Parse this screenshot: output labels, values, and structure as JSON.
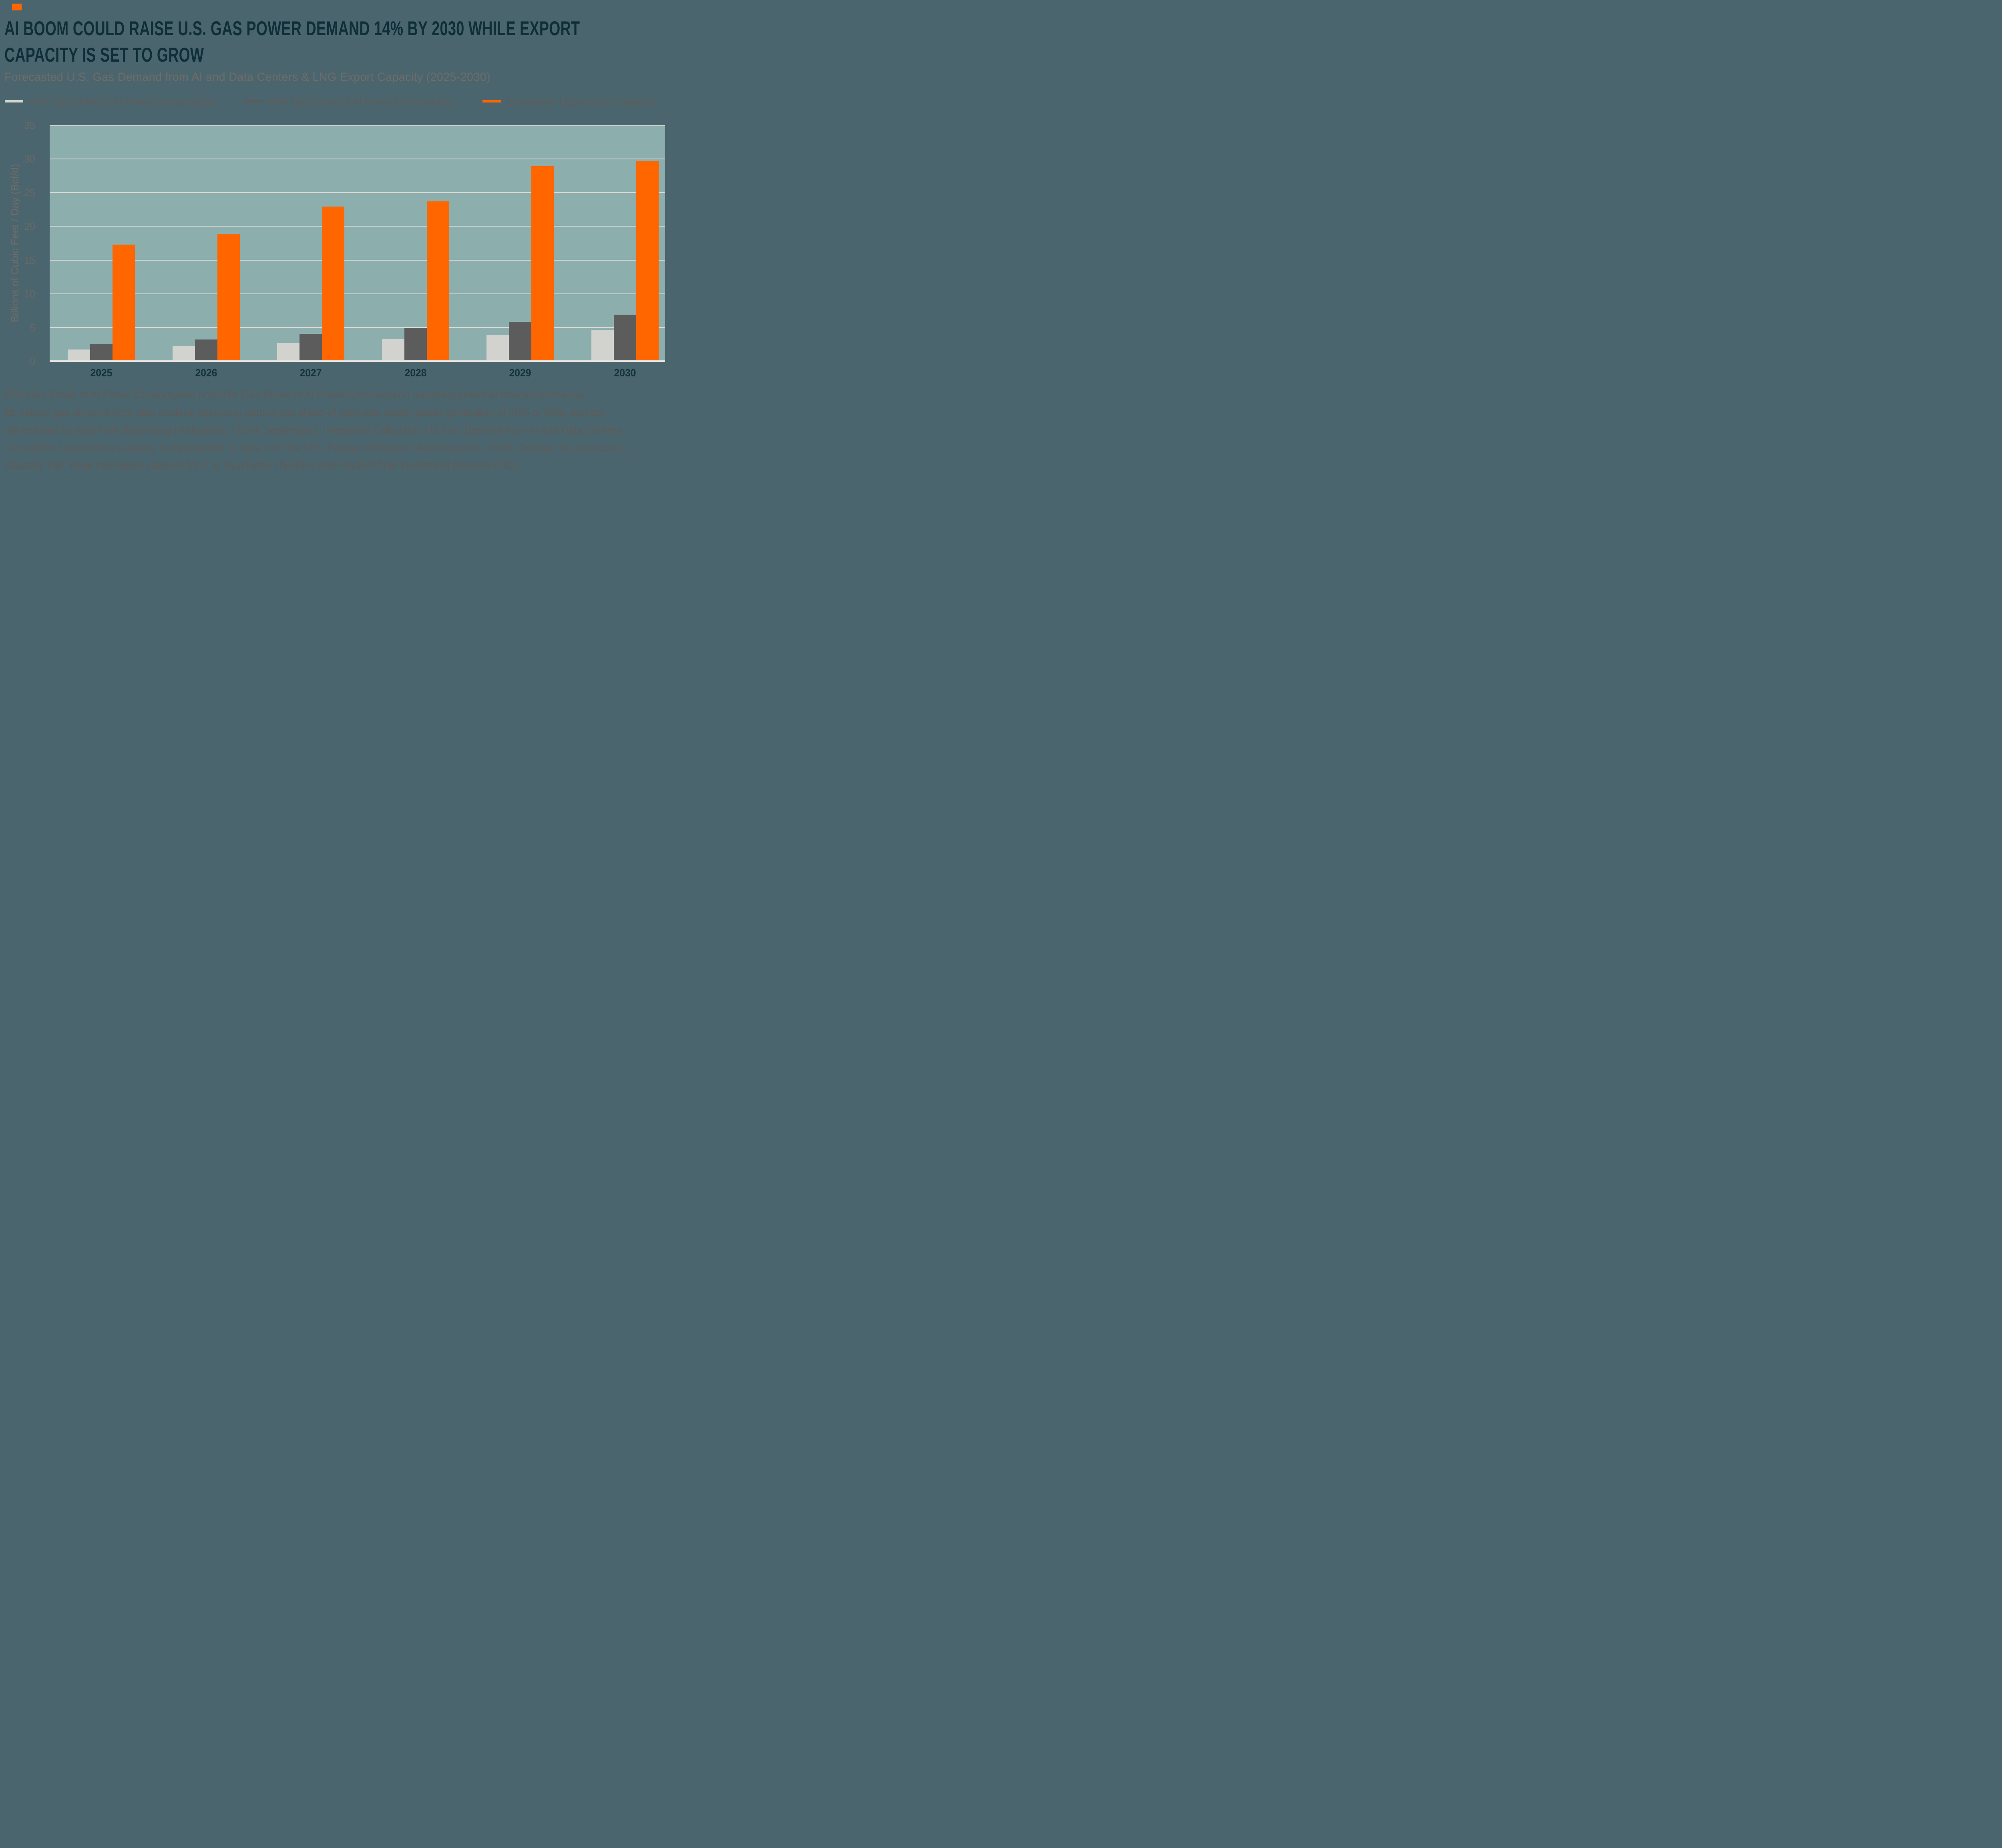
{
  "header": {
    "title_lines": [
      "AI BOOM COULD RAISE U.S. GAS POWER DEMAND 14% BY 2030 WHILE EXPORT",
      "CAPACITY IS SET TO GROW"
    ],
    "subtitle": "Forecasted U.S. Gas Demand from AI and Data Centers & LNG Export Capacity (2025-2030)",
    "accent_color": "#FF6600"
  },
  "chart_data": {
    "type": "bar",
    "title": "Forecasted U.S. Gas Demand from AI and Data Centers & LNG Export Capacity (2025-2030)",
    "categories": [
      "2025",
      "2026",
      "2027",
      "2028",
      "2029",
      "2030"
    ],
    "series": [
      {
        "name": "40% Gas Share of AI Power Consumption",
        "color": "#D2D3CE",
        "values": [
          1.6,
          2.1,
          2.6,
          3.2,
          3.8,
          4.5
        ]
      },
      {
        "name": "60% Gas Share of AI Power Consumption",
        "color": "#5C5C5C",
        "values": [
          2.4,
          3.1,
          3.9,
          4.8,
          5.7,
          6.8
        ]
      },
      {
        "name": "Cumulative Liquefaction Capacity",
        "color": "#FF6600",
        "values": [
          17.2,
          18.8,
          22.8,
          23.6,
          28.8,
          29.6
        ]
      }
    ],
    "xlabel": "",
    "ylabel": "Billions of Cubic Feet / Day (Bcf/d)",
    "yticks": [
      0,
      5,
      10,
      15,
      20,
      25,
      30,
      35
    ],
    "ylim": [
      0,
      35
    ],
    "grid": true,
    "legend_position": "top",
    "plot_bg_color": "#8CAEAD",
    "page_bg_color": "#4B656E"
  },
  "footnote": {
    "lines": [
      "40% Gas Share of AI Power Consumption and 60% Gas Share of AI Power Consumption represent potential forecast scenarios",
      "for natural gas demand from data centers, assuming natural gas share of total data center power generation of 40% or 60%, and are",
      "represented by data from Bloomberg Intelligence. (2024, September). Interactive Calculator: US Gas Demand from AI and Data Centers.",
      "Cumulative Liquefaction Capacity is represented by data from the U.S. Energy Information Administration. (2025, October 1) Liquefaction",
      "Capacity File. Peak nameplate capacity for U.S. liquefaction facilities that reached final investment decision (FID)."
    ]
  }
}
